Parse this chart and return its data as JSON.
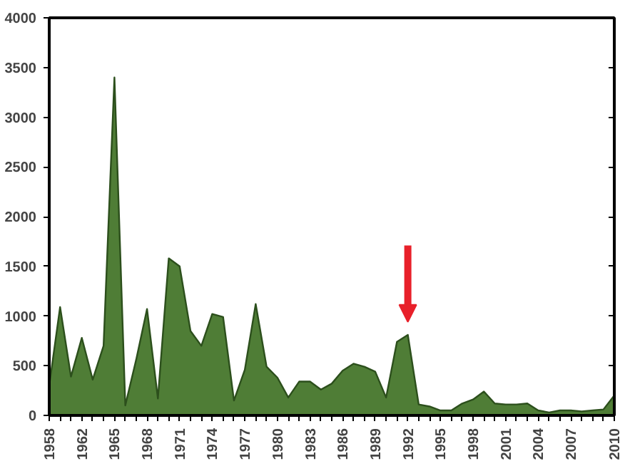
{
  "chart_data": {
    "type": "area",
    "categories": [
      "1958",
      null,
      null,
      "1962",
      null,
      null,
      "1965",
      null,
      null,
      "1968",
      null,
      null,
      "1971",
      null,
      null,
      "1974",
      null,
      null,
      "1977",
      null,
      null,
      "1980",
      null,
      null,
      "1983",
      null,
      null,
      "1986",
      null,
      null,
      "1989",
      null,
      null,
      "1992",
      null,
      null,
      "1995",
      null,
      null,
      "1998",
      null,
      null,
      "2001",
      null,
      null,
      "2004",
      null,
      null,
      "2007",
      null,
      null,
      null,
      "2010"
    ],
    "series": [
      {
        "color": "#4f7d36",
        "values": [
          300,
          1090,
          390,
          780,
          360,
          700,
          3400,
          100,
          560,
          1070,
          170,
          1580,
          1500,
          850,
          700,
          1020,
          990,
          150,
          460,
          1120,
          490,
          380,
          180,
          340,
          340,
          260,
          320,
          450,
          520,
          490,
          440,
          180,
          740,
          810,
          110,
          90,
          50,
          50,
          120,
          160,
          240,
          120,
          110,
          110,
          120,
          50,
          30,
          50,
          50,
          40,
          50,
          60,
          200
        ]
      }
    ],
    "ylim": [
      0,
      4000
    ],
    "yticks": [
      0,
      500,
      1000,
      1500,
      2000,
      2500,
      3000,
      3500,
      4000
    ],
    "grid": false
  }
}
